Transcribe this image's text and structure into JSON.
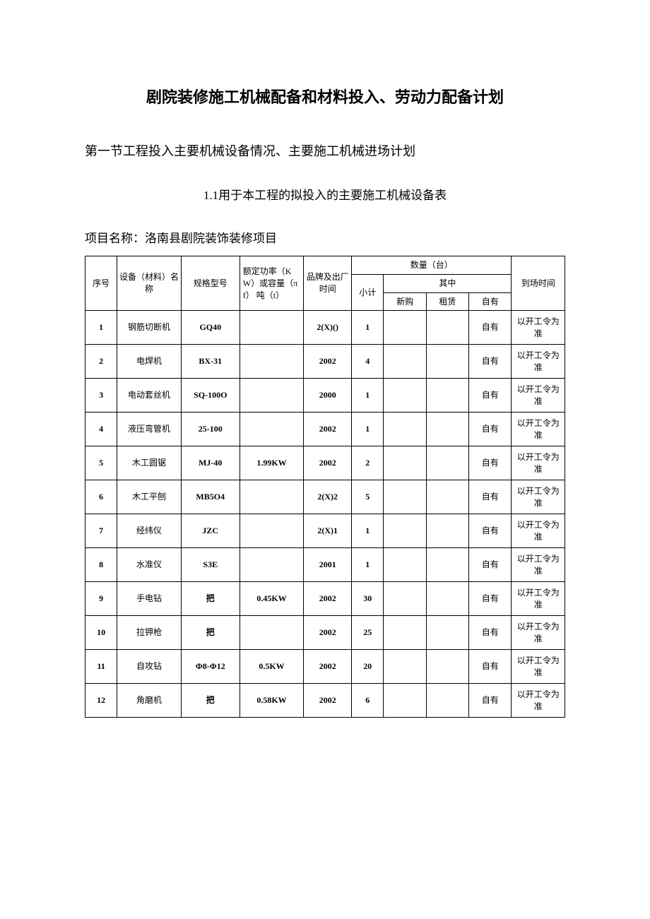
{
  "title": "剧院装修施工机械配备和材料投入、劳动力配备计划",
  "section_title": "第一节工程投入主要机械设备情况、主要施工机械进场计划",
  "sub_title": "1.1用于本工程的拟投入的主要施工机械设备表",
  "project_name_label": "项目名称：",
  "project_name": "洛南县剧院装饰装修项目",
  "headers": {
    "seq": "序号",
    "equip_name": "设备（材料）名称",
    "spec": "规格型号",
    "power": "额定功率（KW）或容量（πf）\n吨（t）",
    "brand": "品牌及出厂时间",
    "qty_group": "数量（台）",
    "subtotal": "小计",
    "of_which": "其中",
    "new_buy": "新购",
    "rent": "租赁",
    "self_own": "自有",
    "arrival": "到场时间"
  },
  "rows": [
    {
      "seq": "1",
      "name": "钢筋切断机",
      "spec": "GQ40",
      "power": "",
      "brand": "2(X)()",
      "subtotal": "1",
      "buy": "",
      "rent": "",
      "own": "自有",
      "arrival": "以开工令为准"
    },
    {
      "seq": "2",
      "name": "电焊机",
      "spec": "BX-31",
      "power": "",
      "brand": "2002",
      "subtotal": "4",
      "buy": "",
      "rent": "",
      "own": "自有",
      "arrival": "以开工令为准"
    },
    {
      "seq": "3",
      "name": "电动套丝机",
      "spec": "SQ-100O",
      "power": "",
      "brand": "2000",
      "subtotal": "1",
      "buy": "",
      "rent": "",
      "own": "自有",
      "arrival": "以开工令为准"
    },
    {
      "seq": "4",
      "name": "液压弯管机",
      "spec": "25-100",
      "power": "",
      "brand": "2002",
      "subtotal": "1",
      "buy": "",
      "rent": "",
      "own": "自有",
      "arrival": "以开工令为准"
    },
    {
      "seq": "5",
      "name": "木工圆锯",
      "spec": "MJ-40",
      "power": "1.99KW",
      "brand": "2002",
      "subtotal": "2",
      "buy": "",
      "rent": "",
      "own": "自有",
      "arrival": "以开工令为准"
    },
    {
      "seq": "6",
      "name": "木工平刨",
      "spec": "MB5O4",
      "power": "",
      "brand": "2(X)2",
      "subtotal": "5",
      "buy": "",
      "rent": "",
      "own": "自有",
      "arrival": "以开工令为准"
    },
    {
      "seq": "7",
      "name": "经纬仪",
      "spec": "JZC",
      "power": "",
      "brand": "2(X)1",
      "subtotal": "1",
      "buy": "",
      "rent": "",
      "own": "自有",
      "arrival": "以开工令为准"
    },
    {
      "seq": "8",
      "name": "水准仪",
      "spec": "S3E",
      "power": "",
      "brand": "2001",
      "subtotal": "1",
      "buy": "",
      "rent": "",
      "own": "自有",
      "arrival": "以开工令为准"
    },
    {
      "seq": "9",
      "name": "手电钻",
      "spec": "把",
      "power": "0.45KW",
      "brand": "2002",
      "subtotal": "30",
      "buy": "",
      "rent": "",
      "own": "自有",
      "arrival": "以开工令为准"
    },
    {
      "seq": "10",
      "name": "拉钾枪",
      "spec": "把",
      "power": "",
      "brand": "2002",
      "subtotal": "25",
      "buy": "",
      "rent": "",
      "own": "自有",
      "arrival": "以开工令为准"
    },
    {
      "seq": "11",
      "name": "自攻钻",
      "spec": "Φ8-Φ12",
      "power": "0.5KW",
      "brand": "2002",
      "subtotal": "20",
      "buy": "",
      "rent": "",
      "own": "自有",
      "arrival": "以开工令为准"
    },
    {
      "seq": "12",
      "name": "角磨机",
      "spec": "把",
      "power": "0.58KW",
      "brand": "2002",
      "subtotal": "6",
      "buy": "",
      "rent": "",
      "own": "自有",
      "arrival": "以开工令为准"
    }
  ],
  "colors": {
    "text": "#000000",
    "background": "#ffffff",
    "border": "#000000"
  },
  "fonts": {
    "title_size": 22,
    "body_size": 17,
    "table_size": 12
  }
}
